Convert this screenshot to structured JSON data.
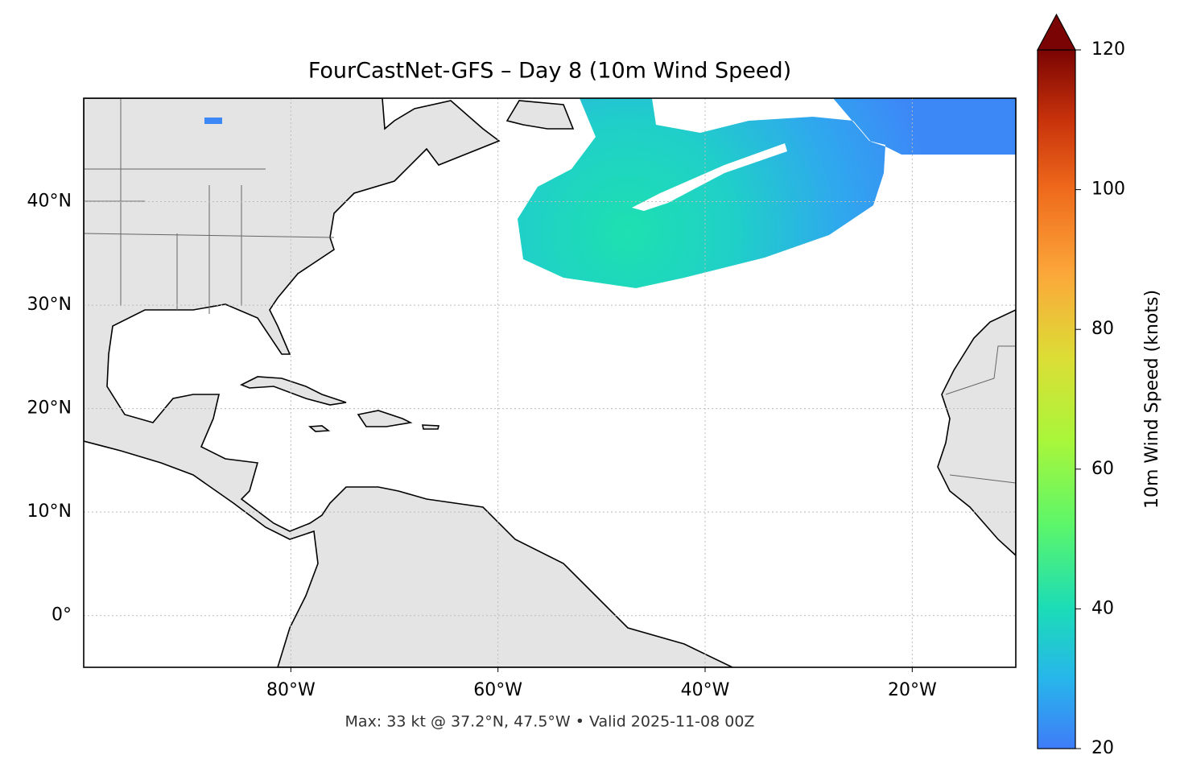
{
  "chart_data": {
    "type": "map",
    "title": "FourCastNet-GFS – Day 8 (10m Wind Speed)",
    "note": "Max: 33 kt @ 37.2°N, 47.5°W • Valid 2025-11-08 00Z",
    "xlim": [
      -100,
      -10
    ],
    "ylim": [
      -5,
      50
    ],
    "xticks": [
      {
        "value": -80,
        "label": "80°W"
      },
      {
        "value": -60,
        "label": "60°W"
      },
      {
        "value": -40,
        "label": "40°W"
      },
      {
        "value": -20,
        "label": "20°W"
      }
    ],
    "yticks": [
      {
        "value": 0,
        "label": "0°"
      },
      {
        "value": 10,
        "label": "10°N"
      },
      {
        "value": 20,
        "label": "20°N"
      },
      {
        "value": 30,
        "label": "30°N"
      },
      {
        "value": 40,
        "label": "40°N"
      }
    ],
    "grid": true,
    "colorbar_label": "10m Wind Speed (knots)",
    "colorbar_lim": [
      20,
      120
    ],
    "colorbar_ticks": [
      20,
      40,
      60,
      80,
      100,
      120
    ]
  }
}
